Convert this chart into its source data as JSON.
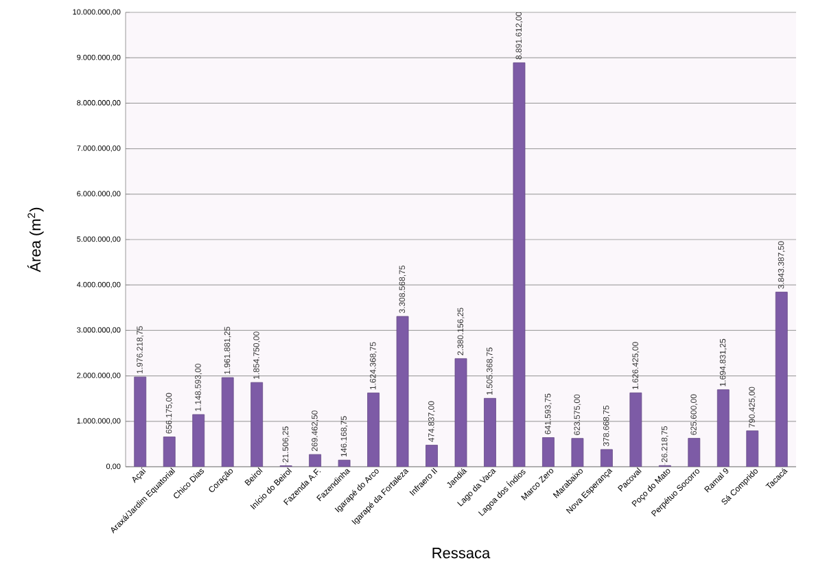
{
  "chart_data": {
    "type": "bar",
    "xlabel": "Ressaca",
    "ylabel": "Área (m$^{2}$)",
    "categories": [
      "Açaí",
      "Araxá/Jardim Equatorial",
      "Chico Dias",
      "Coração",
      "Beirol",
      "Início do Beirol",
      "Fazenda A.F.",
      "Fazendinha",
      "Igarapé do Arco",
      "Igarapé da Fortaleza",
      "Infraero II",
      "Jandiá",
      "Lago da Vaca",
      "Lagoa dos Índios",
      "Marco Zero",
      "Marabaixo",
      "Nova Esperança",
      "Pacoval",
      "Poço do Mato",
      "Perpétuo Socorro",
      "Ramal 9",
      "Sá Comprido",
      "Tacacá"
    ],
    "values": [
      1976218.75,
      656175.0,
      1148593.0,
      1961881.25,
      1854750.0,
      21506.25,
      269462.5,
      146168.75,
      1624368.75,
      3308568.75,
      474837.0,
      2380156.25,
      1505368.75,
      8891612.0,
      641593.75,
      623575.0,
      378668.75,
      1626425.0,
      26218.75,
      625600.0,
      1694831.25,
      790425.0,
      3843387.5
    ],
    "value_labels": [
      "1.976.218,75",
      "656.175,00",
      "1.148.593,00",
      "1.961.881,25",
      "1.854.750,00",
      "21.506,25",
      "269.462,50",
      "146.168,75",
      "1.624.368,75",
      "3.308.568,75",
      "474.837,00",
      "2.380.156,25",
      "1.505.368,75",
      "8.891.612,00",
      "641.593,75",
      "623.575,00",
      "378.668,75",
      "1.626.425,00",
      "26.218,75",
      "625.600,00",
      "1.694.831,25",
      "790.425,00",
      "3.843.387,50"
    ],
    "color": "#7d5ba6",
    "ylim": [
      0,
      10000000
    ],
    "yticks": [
      {
        "value": 0,
        "label": "0,00"
      },
      {
        "value": 1000000,
        "label": "1.000.000,00"
      },
      {
        "value": 2000000,
        "label": "2.000.000,00"
      },
      {
        "value": 3000000,
        "label": "3.000.000,00"
      },
      {
        "value": 4000000,
        "label": "4.000.000,00"
      },
      {
        "value": 5000000,
        "label": "5.000.000,00"
      },
      {
        "value": 6000000,
        "label": "6.000.000,00"
      },
      {
        "value": 7000000,
        "label": "7.000.000,00"
      },
      {
        "value": 8000000,
        "label": "8.000.000,00"
      },
      {
        "value": 9000000,
        "label": "9.000.000,00"
      },
      {
        "value": 10000000,
        "label": "10.000.000,00"
      }
    ],
    "grid": "y"
  }
}
